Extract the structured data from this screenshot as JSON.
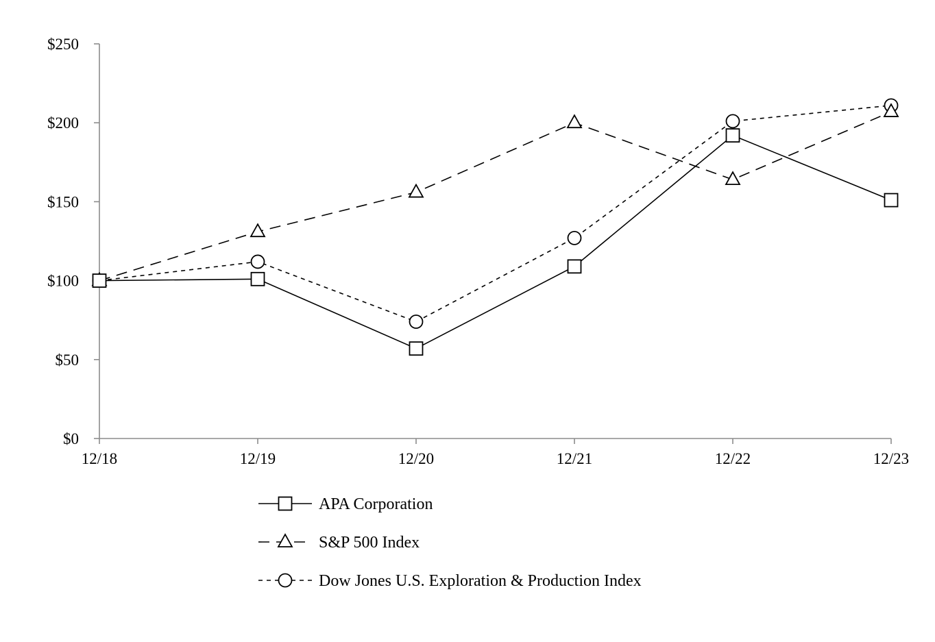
{
  "chart_data": {
    "type": "line",
    "title": "",
    "xlabel": "",
    "ylabel": "",
    "categories": [
      "12/18",
      "12/19",
      "12/20",
      "12/21",
      "12/22",
      "12/23"
    ],
    "ylim": [
      0,
      250
    ],
    "yticks": [
      0,
      50,
      100,
      150,
      200,
      250
    ],
    "ytick_labels": [
      "$0",
      "$50",
      "$100",
      "$150",
      "$200",
      "$250"
    ],
    "grid": false,
    "legend_position": "bottom",
    "series": [
      {
        "name": "APA Corporation",
        "values": [
          100,
          101,
          57,
          109,
          192,
          151
        ],
        "marker": "square",
        "line_style": "solid",
        "color": "#000000"
      },
      {
        "name": "S&P 500 Index",
        "values": [
          100,
          131,
          156,
          200,
          164,
          207
        ],
        "marker": "triangle",
        "line_style": "long-dash",
        "color": "#000000"
      },
      {
        "name": "Dow Jones U.S. Exploration & Production Index",
        "values": [
          100,
          112,
          74,
          127,
          201,
          211
        ],
        "marker": "circle",
        "line_style": "short-dash",
        "color": "#000000"
      }
    ]
  }
}
